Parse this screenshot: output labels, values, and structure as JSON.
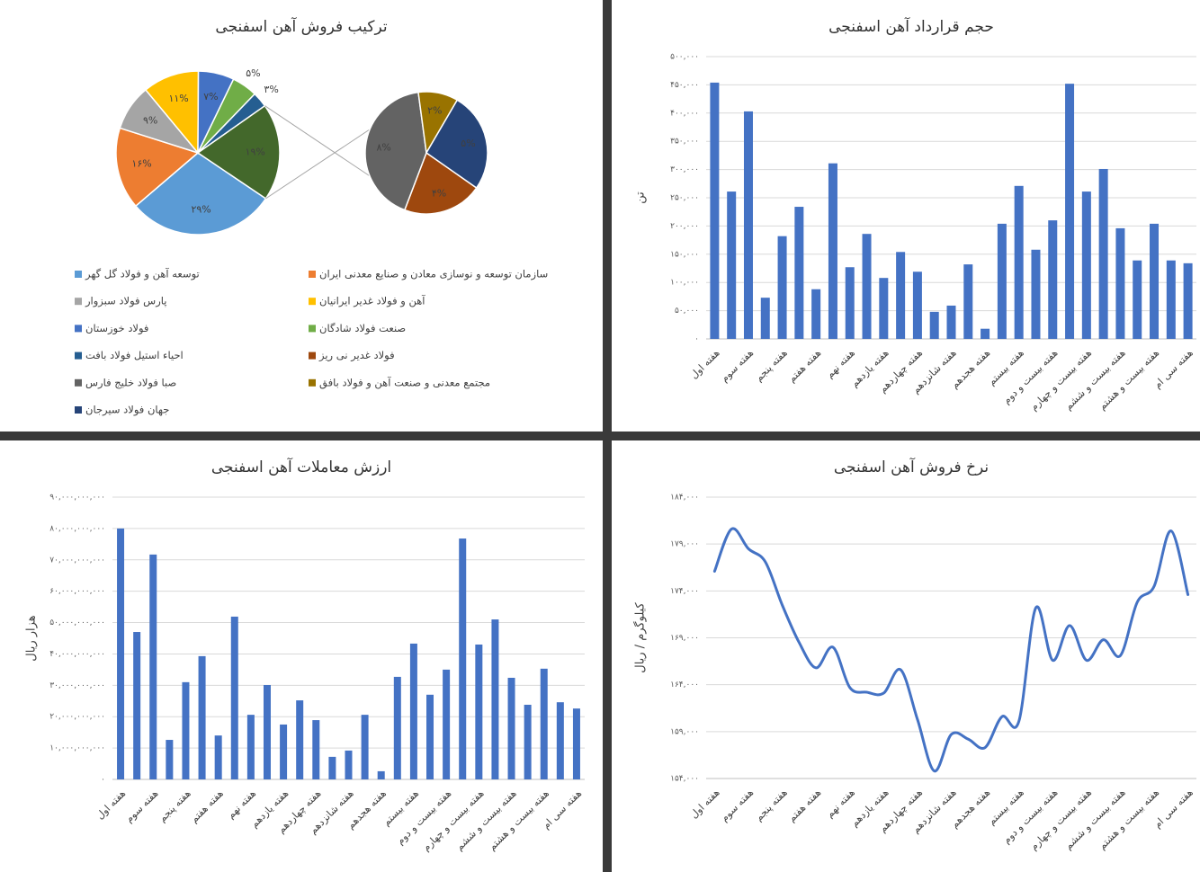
{
  "chart_data": [
    {
      "type": "pie-of-pie",
      "title": "ترکیب فروش آهن اسفنجی",
      "categories": [
        "توسعه آهن و فولاد گل گهر",
        "سازمان توسعه و نوسازی معادن و صنایع معدنی ایران",
        "پارس فولاد سبزوار",
        "آهن و فولاد غدیر ایرانیان",
        "فولاد خوزستان",
        "صنعت فولاد شادگان",
        "احیاء استیل فولاد بافت",
        "فولاد غدیر نی ریز",
        "صبا فولاد خلیج فارس",
        "مجتمع معدنی و صنعت آهن و فولاد بافق",
        "جهان فولاد سیرجان"
      ],
      "values": [
        29,
        16,
        9,
        11,
        7,
        5,
        3,
        4,
        8,
        2,
        5
      ],
      "value_labels": [
        "۲۹%",
        "۱۶%",
        "۹%",
        "۱۱%",
        "۷%",
        "۵%",
        "۳%",
        "۴%",
        "۸%",
        "۲%",
        "۵%"
      ],
      "colors": [
        "#5b9bd5",
        "#ed7d31",
        "#a5a5a5",
        "#ffc000",
        "#4472c4",
        "#70ad47",
        "#255e91",
        "#9e480e",
        "#636363",
        "#997300",
        "#264478"
      ],
      "pie": [
        "main",
        "main",
        "main",
        "main",
        "main",
        "main",
        "main",
        "secondary",
        "secondary",
        "secondary",
        "secondary"
      ],
      "other": {
        "value": 19,
        "value_label": "۱۹%",
        "color": "#43682b"
      }
    },
    {
      "type": "bar",
      "title": "حجم قرارداد آهن اسفنجی",
      "y_label": "تن",
      "color": "#4472c4",
      "grid": true,
      "categories": [
        "هفته اول",
        null,
        "هفته سوم",
        null,
        "هفته پنجم",
        null,
        "هفته هفتم",
        null,
        "هفته نهم",
        null,
        "هفته یازدهم",
        null,
        "هفته چهاردهم",
        null,
        "هفته شانزدهم",
        null,
        "هفته هجدهم",
        null,
        "هفته بیستم",
        null,
        "هفته بیست و دوم",
        null,
        "هفته بیست و چهارم",
        null,
        "هفته بیست و ششم",
        null,
        "هفته بیست و هشتم",
        null,
        "هفته سی ام"
      ],
      "values": [
        454000,
        261000,
        403000,
        73000,
        182000,
        234000,
        88000,
        311000,
        127000,
        186000,
        108000,
        154000,
        119000,
        48000,
        59000,
        132000,
        18000,
        204000,
        271000,
        158000,
        210000,
        452000,
        261000,
        301000,
        196000,
        139000,
        204000,
        139000,
        134000
      ],
      "ylim": [
        0,
        500000
      ],
      "yticks": [
        {
          "value": 0,
          "label": "۰"
        },
        {
          "value": 50000,
          "label": "۵۰,۰۰۰"
        },
        {
          "value": 100000,
          "label": "۱۰۰,۰۰۰"
        },
        {
          "value": 150000,
          "label": "۱۵۰,۰۰۰"
        },
        {
          "value": 200000,
          "label": "۲۰۰,۰۰۰"
        },
        {
          "value": 250000,
          "label": "۲۵۰,۰۰۰"
        },
        {
          "value": 300000,
          "label": "۳۰۰,۰۰۰"
        },
        {
          "value": 350000,
          "label": "۳۵۰,۰۰۰"
        },
        {
          "value": 400000,
          "label": "۴۰۰,۰۰۰"
        },
        {
          "value": 450000,
          "label": "۴۵۰,۰۰۰"
        },
        {
          "value": 500000,
          "label": "۵۰۰,۰۰۰"
        }
      ]
    },
    {
      "type": "bar",
      "title": "ارزش معاملات آهن اسفنجی",
      "y_label": "هزار ریال",
      "color": "#4472c4",
      "grid": true,
      "categories": [
        "هفته اول",
        null,
        "هفته سوم",
        null,
        "هفته پنجم",
        null,
        "هفته هفتم",
        null,
        "هفته نهم",
        null,
        "هفته یازدهم",
        null,
        "هفته چهاردهم",
        null,
        "هفته شانزدهم",
        null,
        "هفته هجدهم",
        null,
        "هفته بیستم",
        null,
        "هفته بیست و دوم",
        null,
        "هفته بیست و چهارم",
        null,
        "هفته بیست و ششم",
        null,
        "هفته بیست و هشتم",
        null,
        "هفته سی ام"
      ],
      "values": [
        80000000000,
        47000000000,
        71700000000,
        12600000000,
        31000000000,
        39300000000,
        14000000000,
        51900000000,
        20600000000,
        30100000000,
        17500000000,
        25200000000,
        18900000000,
        7200000000,
        9200000000,
        20600000000,
        2600000000,
        32700000000,
        43300000000,
        27000000000,
        35000000000,
        76800000000,
        43000000000,
        51000000000,
        32400000000,
        23800000000,
        35300000000,
        24600000000,
        22600000000
      ],
      "ylim": [
        0,
        90000000000
      ],
      "yticks": [
        {
          "value": 0,
          "label": "۰"
        },
        {
          "value": 10000000000,
          "label": "۱۰,۰۰۰,۰۰۰,۰۰۰"
        },
        {
          "value": 20000000000,
          "label": "۲۰,۰۰۰,۰۰۰,۰۰۰"
        },
        {
          "value": 30000000000,
          "label": "۳۰,۰۰۰,۰۰۰,۰۰۰"
        },
        {
          "value": 40000000000,
          "label": "۴۰,۰۰۰,۰۰۰,۰۰۰"
        },
        {
          "value": 50000000000,
          "label": "۵۰,۰۰۰,۰۰۰,۰۰۰"
        },
        {
          "value": 60000000000,
          "label": "۶۰,۰۰۰,۰۰۰,۰۰۰"
        },
        {
          "value": 70000000000,
          "label": "۷۰,۰۰۰,۰۰۰,۰۰۰"
        },
        {
          "value": 80000000000,
          "label": "۸۰,۰۰۰,۰۰۰,۰۰۰"
        },
        {
          "value": 90000000000,
          "label": "۹۰,۰۰۰,۰۰۰,۰۰۰"
        }
      ]
    },
    {
      "type": "line",
      "title": "نرخ فروش آهن اسفنجی",
      "y_label": "کیلوگرم / ریال",
      "color": "#4472c4",
      "grid": true,
      "categories": [
        "هفته اول",
        null,
        "هفته سوم",
        null,
        "هفته پنجم",
        null,
        "هفته هفتم",
        null,
        "هفته نهم",
        null,
        "هفته یازدهم",
        null,
        "هفته چهاردهم",
        null,
        "هفته شانزدهم",
        null,
        "هفته هجدهم",
        null,
        "هفته بیستم",
        null,
        "هفته بیست و دوم",
        null,
        "هفته بیست و چهارم",
        null,
        "هفته بیست و ششم",
        null,
        "هفته بیست و هشتم",
        null,
        "هفته سی ام"
      ],
      "values": [
        176100,
        180600,
        178500,
        177100,
        172500,
        168500,
        165800,
        168000,
        163700,
        163200,
        163100,
        165600,
        160300,
        154800,
        158700,
        158200,
        157300,
        160600,
        160100,
        172200,
        166600,
        170300,
        166600,
        168800,
        167100,
        172800,
        174500,
        180400,
        173600
      ],
      "ylim": [
        154000,
        184000
      ],
      "yticks": [
        {
          "value": 154000,
          "label": "۱۵۴,۰۰۰"
        },
        {
          "value": 159000,
          "label": "۱۵۹,۰۰۰"
        },
        {
          "value": 164000,
          "label": "۱۶۴,۰۰۰"
        },
        {
          "value": 169000,
          "label": "۱۶۹,۰۰۰"
        },
        {
          "value": 174000,
          "label": "۱۷۴,۰۰۰"
        },
        {
          "value": 179000,
          "label": "۱۷۹,۰۰۰"
        },
        {
          "value": 184000,
          "label": "۱۸۴,۰۰۰"
        }
      ]
    }
  ]
}
